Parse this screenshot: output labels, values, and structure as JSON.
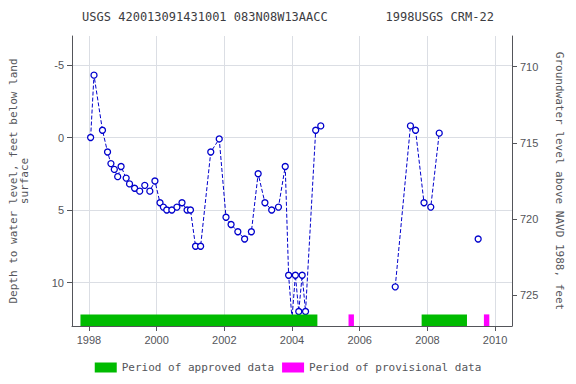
{
  "chart_data": {
    "type": "line",
    "title": "USGS 420013091431001 083N08W13AACC        1998USGS CRM-22",
    "ylabel": "Depth to water level, feet below land\nsurface",
    "y2label": "Groundwater level above NAVD 1988, feet",
    "xlim": [
      1997.5,
      2010.5
    ],
    "xticks": [
      1998,
      2000,
      2002,
      2004,
      2006,
      2008,
      2010
    ],
    "ylim": [
      13,
      -7
    ],
    "yticks": [
      -5,
      0,
      5,
      10
    ],
    "y2lim": [
      727,
      708
    ],
    "y2ticks": [
      710,
      715,
      720,
      725
    ],
    "grid": true,
    "legend": "bottom",
    "series": [
      {
        "type": "line",
        "color": "#0000CC",
        "marker": "circle",
        "line_style": "dashed",
        "x": [
          1998.05,
          1998.15,
          1998.4,
          1998.55,
          1998.65,
          1998.75,
          1998.85,
          1998.95,
          1999.1,
          1999.2,
          1999.35,
          1999.5,
          1999.65,
          1999.8,
          1999.95,
          2000.1,
          2000.2,
          2000.3,
          2000.45,
          2000.6,
          2000.75,
          2000.9,
          2001.0,
          2001.15,
          2001.3,
          2001.6,
          2001.85,
          2002.05,
          2002.2,
          2002.4,
          2002.6,
          2002.8,
          2003.0,
          2003.2,
          2003.4,
          2003.6,
          2003.8,
          2003.9,
          2004.0,
          2004.1,
          2004.2,
          2004.3,
          2004.4,
          2004.7,
          2004.85
        ],
        "values": [
          0.0,
          -4.3,
          -0.5,
          1.0,
          1.8,
          2.2,
          2.7,
          2.0,
          2.8,
          3.2,
          3.5,
          3.7,
          3.3,
          3.7,
          3.0,
          4.5,
          4.8,
          5.0,
          5.0,
          4.8,
          4.5,
          5.0,
          5.0,
          7.5,
          7.5,
          1.0,
          0.1,
          5.5,
          6.0,
          6.5,
          7.0,
          6.5,
          2.5,
          4.5,
          5.0,
          4.8,
          2.0,
          9.5,
          12.5,
          9.5,
          12.0,
          9.5,
          12.0,
          -0.5,
          -0.8
        ]
      },
      {
        "type": "line",
        "color": "#0000CC",
        "marker": "circle",
        "line_style": "dashed",
        "x": [
          2007.05,
          2007.5,
          2007.65,
          2007.9,
          2008.1,
          2008.35
        ],
        "values": [
          10.3,
          -0.8,
          -0.5,
          4.5,
          4.8,
          -0.3
        ]
      },
      {
        "type": "line",
        "color": "#0000CC",
        "marker": "circle",
        "line_style": "dashed",
        "x": [
          2009.5
        ],
        "values": [
          7.0
        ]
      },
      {
        "type": "span",
        "name": "Period of approved data",
        "color": "#00bb00",
        "periods": [
          [
            1997.75,
            2004.75
          ],
          [
            2007.83,
            2009.17
          ]
        ]
      },
      {
        "type": "span",
        "name": "Period of provisional data",
        "color": "#ff00ff",
        "periods": [
          [
            2005.67,
            2005.83
          ],
          [
            2009.67,
            2009.83
          ]
        ]
      }
    ]
  }
}
